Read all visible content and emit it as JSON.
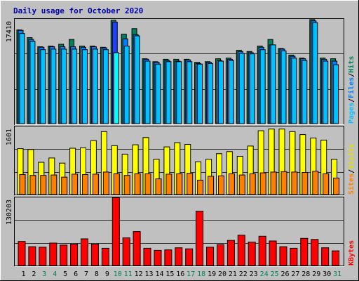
{
  "chart_data": [
    {
      "type": "bar",
      "panel": "top",
      "title": "Daily usage for October 2020",
      "ymax_label": "17410",
      "ylim": [
        0,
        17410
      ],
      "legend": [
        "Pages",
        "/",
        "Files",
        "/",
        "Hits"
      ],
      "colors": {
        "hits": "#00805c",
        "files": "#0080ff",
        "pages": "#00c0ff",
        "pages_selected": "#00ffff",
        "files_selected": "#2040ff"
      },
      "series": [
        {
          "name": "Hits",
          "values": [
            15600,
            14300,
            12800,
            12900,
            13200,
            14000,
            12900,
            12900,
            12700,
            17200,
            14900,
            15800,
            10800,
            10300,
            10700,
            10700,
            10700,
            10200,
            10300,
            10800,
            10900,
            12200,
            12000,
            12900,
            14000,
            12500,
            11400,
            10900,
            17300,
            10900,
            10800
          ]
        },
        {
          "name": "Files",
          "values": [
            15500,
            14000,
            12700,
            12800,
            12800,
            12800,
            12700,
            12800,
            12600,
            16900,
            14100,
            14800,
            10700,
            10200,
            10500,
            10400,
            10600,
            10000,
            10200,
            10500,
            10700,
            12000,
            11800,
            12700,
            13100,
            12400,
            11200,
            10800,
            17100,
            10700,
            10400
          ]
        },
        {
          "name": "Pages",
          "values": [
            15000,
            13700,
            12300,
            12400,
            12400,
            12400,
            12300,
            12400,
            12300,
            11800,
            12900,
            14600,
            10400,
            9900,
            10300,
            10300,
            10300,
            9900,
            10000,
            10400,
            10500,
            11700,
            11600,
            12300,
            13100,
            12100,
            10900,
            10500,
            16800,
            10400,
            9800
          ]
        }
      ],
      "categories": [
        "1",
        "2",
        "3",
        "4",
        "5",
        "6",
        "7",
        "8",
        "9",
        "10",
        "11",
        "12",
        "13",
        "14",
        "15",
        "16",
        "17",
        "18",
        "19",
        "20",
        "21",
        "22",
        "23",
        "24",
        "25",
        "26",
        "27",
        "28",
        "29",
        "30",
        "31"
      ],
      "selected_day": 10
    },
    {
      "type": "bar",
      "panel": "middle",
      "ymax_label": "1601",
      "ylim": [
        0,
        1601
      ],
      "legend": [
        "Sites",
        "/",
        "Visits"
      ],
      "colors": {
        "visits": "#ffff00",
        "sites": "#ff8000"
      },
      "series": [
        {
          "name": "Visits",
          "values": [
            1080,
            1060,
            760,
            860,
            740,
            1090,
            1100,
            1270,
            1480,
            1150,
            950,
            1170,
            1340,
            830,
            1120,
            1220,
            1180,
            770,
            830,
            960,
            1010,
            900,
            1140,
            1500,
            1540,
            1540,
            1480,
            1410,
            1330,
            1280,
            830
          ]
        },
        {
          "name": "Sites",
          "values": [
            470,
            450,
            450,
            460,
            410,
            480,
            470,
            480,
            530,
            490,
            450,
            490,
            490,
            370,
            480,
            490,
            500,
            340,
            430,
            440,
            490,
            460,
            490,
            510,
            530,
            540,
            530,
            520,
            550,
            490,
            390
          ]
        }
      ]
    },
    {
      "type": "bar",
      "panel": "bottom",
      "ymax_label": "130203",
      "ylim": [
        0,
        130203
      ],
      "legend": [
        "KBytes"
      ],
      "colors": {
        "kbytes": "#ff0000"
      },
      "series": [
        {
          "name": "KBytes",
          "values": [
            46000,
            36000,
            35000,
            43000,
            39000,
            41000,
            51000,
            41000,
            33000,
            130000,
            53000,
            65000,
            33000,
            29000,
            30000,
            34000,
            32000,
            104000,
            35000,
            40000,
            48000,
            58000,
            45000,
            56000,
            47000,
            36000,
            33000,
            52000,
            50000,
            34000,
            28000
          ]
        }
      ]
    }
  ]
}
